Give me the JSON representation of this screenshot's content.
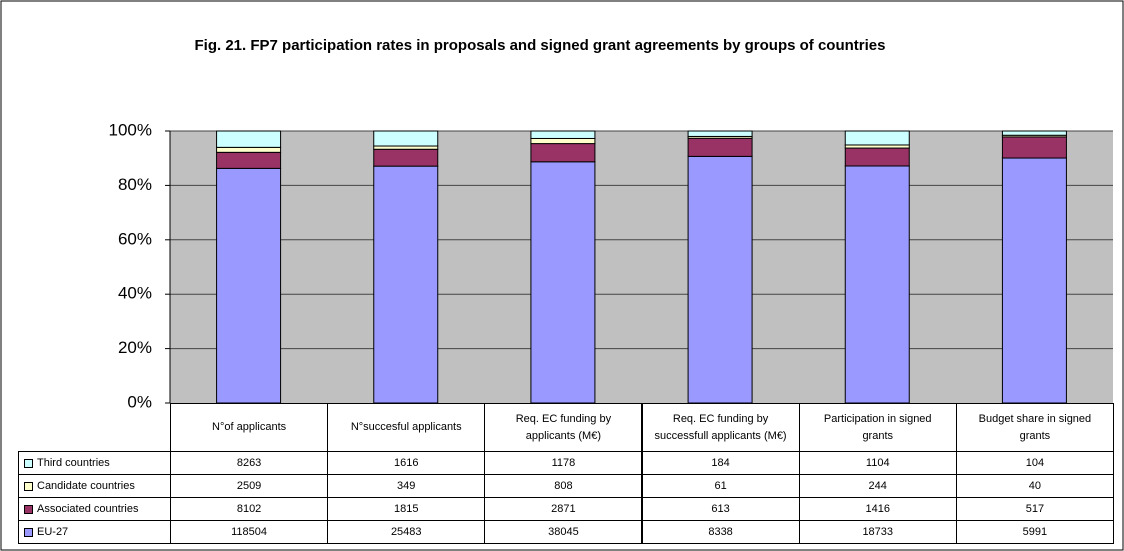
{
  "chart_data": {
    "type": "stacked_bar_100",
    "title": "Fig. 21. FP7 participation rates in proposals and signed grant agreements by groups of countries",
    "categories": [
      "N°of applicants",
      "N°succesful applicants",
      "Req. EC funding by applicants (M€)",
      "Req. EC funding by successfull applicants (M€)",
      "Participation in signed grants",
      "Budget share in signed grants"
    ],
    "series": [
      {
        "name": "EU-27",
        "color": "#9999ff",
        "values": [
          118504,
          25483,
          38045,
          8338,
          18733,
          5991
        ]
      },
      {
        "name": "Associated countries",
        "color": "#993366",
        "values": [
          8102,
          1815,
          2871,
          613,
          1416,
          517
        ]
      },
      {
        "name": "Candidate countries",
        "color": "#ffffcc",
        "values": [
          2509,
          349,
          808,
          61,
          244,
          40
        ]
      },
      {
        "name": "Third countries",
        "color": "#ccffff",
        "values": [
          8263,
          1616,
          1178,
          184,
          1104,
          104
        ]
      }
    ],
    "ylim": [
      0,
      100
    ],
    "yticks": [
      {
        "value": 0,
        "label": "0%"
      },
      {
        "value": 20,
        "label": "20%"
      },
      {
        "value": 40,
        "label": "40%"
      },
      {
        "value": 60,
        "label": "60%"
      },
      {
        "value": 80,
        "label": "80%"
      },
      {
        "value": 100,
        "label": "100%"
      }
    ],
    "grid": true
  }
}
